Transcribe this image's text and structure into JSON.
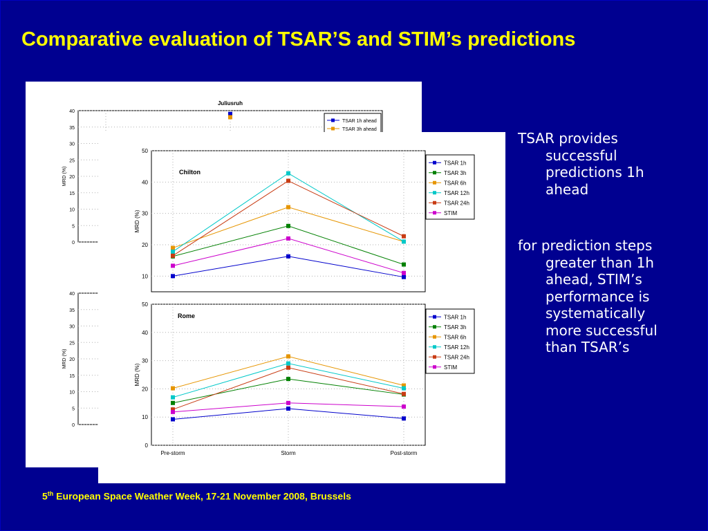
{
  "title": "Comparative evaluation of TSAR’S and STIM’s predictions",
  "bullets": [
    "TSAR provides successful predictions 1h ahead",
    "for prediction steps greater than 1h ahead, STIM’s performance is systematically more successful than TSAR’s"
  ],
  "footer": {
    "num": "5",
    "sup": "th",
    "text": " European Space Weather Week, 17-21 November 2008, Brussels"
  },
  "colors": {
    "TSAR 1h": "#0000cc",
    "TSAR 3h": "#008000",
    "TSAR 6h": "#e69500",
    "TSAR 12h": "#00c8c8",
    "TSAR 24h": "#c83c14",
    "STIM": "#cc00cc"
  },
  "chart_data": [
    {
      "type": "line",
      "title": "Juliusruh",
      "ylabel": "MRD (%)",
      "ylim": [
        0,
        40
      ],
      "yticks": [
        0,
        5,
        10,
        15,
        20,
        25,
        30,
        35,
        40
      ],
      "categories": [
        "Pre-storm",
        "Storm",
        "Post-storm"
      ],
      "legend": [
        "TSAR 1h ahead",
        "TSAR 3h ahead"
      ],
      "series": [
        {
          "name": "TSAR 1h ahead",
          "values": [
            null,
            39,
            null
          ]
        },
        {
          "name": "TSAR 3h ahead",
          "values": [
            null,
            38,
            null
          ]
        }
      ]
    },
    {
      "type": "line",
      "title": "",
      "ylabel": "MRD (%)",
      "ylim": [
        0,
        40
      ],
      "yticks": [
        0,
        5,
        10,
        15,
        20,
        25,
        30,
        35,
        40
      ],
      "series": []
    },
    {
      "type": "line",
      "title": "Chilton",
      "ylabel": "MRD (%)",
      "ylim": [
        5,
        50
      ],
      "yticks": [
        10,
        20,
        30,
        40,
        50
      ],
      "categories": [
        "Pre-storm",
        "Storm",
        "Post-storm"
      ],
      "series": [
        {
          "name": "TSAR 1h",
          "values": [
            10,
            16.3,
            9.7
          ]
        },
        {
          "name": "TSAR 3h",
          "values": [
            16.3,
            26,
            13.7
          ]
        },
        {
          "name": "TSAR 6h",
          "values": [
            19,
            32,
            21
          ]
        },
        {
          "name": "TSAR 12h",
          "values": [
            17.8,
            42.8,
            21
          ]
        },
        {
          "name": "TSAR 24h",
          "values": [
            16.5,
            40.4,
            22.7
          ]
        },
        {
          "name": "STIM",
          "values": [
            13.3,
            22,
            11
          ]
        }
      ]
    },
    {
      "type": "line",
      "title": "Rome",
      "ylabel": "MRD (%)",
      "ylim": [
        0,
        50
      ],
      "yticks": [
        0,
        10,
        20,
        30,
        40,
        50
      ],
      "categories": [
        "Pre-storm",
        "Storm",
        "Post-storm"
      ],
      "series": [
        {
          "name": "TSAR 1h",
          "values": [
            9.2,
            13,
            9.5
          ]
        },
        {
          "name": "TSAR 3h",
          "values": [
            15,
            23.5,
            18
          ]
        },
        {
          "name": "TSAR 6h",
          "values": [
            20.2,
            31.5,
            21.2
          ]
        },
        {
          "name": "TSAR 12h",
          "values": [
            17,
            29,
            20.2
          ]
        },
        {
          "name": "TSAR 24h",
          "values": [
            12.7,
            27.5,
            18.2
          ]
        },
        {
          "name": "STIM",
          "values": [
            11.8,
            15,
            13.7
          ]
        }
      ]
    }
  ]
}
